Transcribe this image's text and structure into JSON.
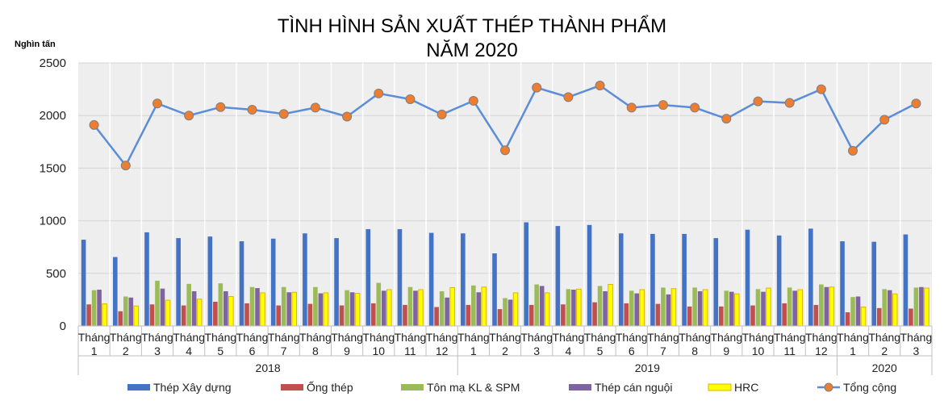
{
  "chart_data": {
    "type": "bar",
    "title": [
      "TÌNH HÌNH SẢN XUẤT THÉP THÀNH PHẨM",
      "NĂM 2020"
    ],
    "ylabel": "Nghìn tấn",
    "ylim": [
      0,
      2500
    ],
    "yticks": [
      0,
      500,
      1000,
      1500,
      2000,
      2500
    ],
    "grid": true,
    "legend_position": "bottom",
    "categories": [
      "Tháng 1",
      "Tháng 2",
      "Tháng 3",
      "Tháng 4",
      "Tháng 5",
      "Tháng 6",
      "Tháng 7",
      "Tháng 8",
      "Tháng 9",
      "Tháng 10",
      "Tháng 11",
      "Tháng 12",
      "Tháng 1",
      "Tháng 2",
      "Tháng 3",
      "Tháng 4",
      "Tháng 5",
      "Tháng 6",
      "Tháng 7",
      "Tháng 8",
      "Tháng 9",
      "Tháng 10",
      "Tháng 11",
      "Tháng 12",
      "Tháng 1",
      "Tháng 2",
      "Tháng 3"
    ],
    "category_lines": [
      [
        "Tháng",
        "1"
      ],
      [
        "Tháng",
        "2"
      ],
      [
        "Tháng",
        "3"
      ],
      [
        "Tháng",
        "4"
      ],
      [
        "Tháng",
        "5"
      ],
      [
        "Tháng",
        "6"
      ],
      [
        "Tháng",
        "7"
      ],
      [
        "Tháng",
        "8"
      ],
      [
        "Tháng",
        "9"
      ],
      [
        "Tháng",
        "10"
      ],
      [
        "Tháng",
        "11"
      ],
      [
        "Tháng",
        "12"
      ],
      [
        "Tháng",
        "1"
      ],
      [
        "Tháng",
        "2"
      ],
      [
        "Tháng",
        "3"
      ],
      [
        "Tháng",
        "4"
      ],
      [
        "Tháng",
        "5"
      ],
      [
        "Tháng",
        "6"
      ],
      [
        "Tháng",
        "7"
      ],
      [
        "Tháng",
        "8"
      ],
      [
        "Tháng",
        "9"
      ],
      [
        "Tháng",
        "10"
      ],
      [
        "Tháng",
        "11"
      ],
      [
        "Tháng",
        "12"
      ],
      [
        "Tháng",
        "1"
      ],
      [
        "Tháng",
        "2"
      ],
      [
        "Tháng",
        "3"
      ]
    ],
    "year_groups": [
      {
        "label": "2018",
        "count": 12
      },
      {
        "label": "2019",
        "count": 12
      },
      {
        "label": "2020",
        "count": 3
      }
    ],
    "series": [
      {
        "name": "Thép Xây dựng",
        "kind": "bar",
        "color": "#4472c4",
        "values": [
          820,
          655,
          890,
          835,
          850,
          805,
          830,
          880,
          835,
          920,
          920,
          885,
          880,
          690,
          985,
          950,
          960,
          880,
          875,
          875,
          835,
          915,
          860,
          925,
          805,
          800,
          870
        ]
      },
      {
        "name": "Ống thép",
        "kind": "bar",
        "color": "#c0504d",
        "values": [
          205,
          140,
          205,
          195,
          230,
          215,
          195,
          210,
          195,
          215,
          200,
          180,
          200,
          160,
          200,
          205,
          225,
          215,
          210,
          185,
          185,
          195,
          215,
          200,
          130,
          170,
          165
        ]
      },
      {
        "name": "Tôn mạ KL & SPM",
        "kind": "bar",
        "color": "#9bbb59",
        "values": [
          340,
          280,
          430,
          400,
          405,
          370,
          370,
          370,
          340,
          410,
          370,
          330,
          385,
          265,
          395,
          350,
          380,
          335,
          365,
          365,
          335,
          350,
          365,
          395,
          275,
          350,
          365
        ]
      },
      {
        "name": "Thép cán nguội",
        "kind": "bar",
        "color": "#8064a2",
        "values": [
          345,
          270,
          355,
          330,
          330,
          360,
          320,
          310,
          320,
          335,
          335,
          270,
          320,
          250,
          380,
          345,
          330,
          310,
          300,
          330,
          325,
          325,
          335,
          370,
          280,
          340,
          370
        ]
      },
      {
        "name": "HRC",
        "kind": "bar",
        "color": "#ffff00",
        "stroke": "#e0b400",
        "values": [
          210,
          190,
          245,
          255,
          280,
          315,
          320,
          315,
          310,
          345,
          345,
          365,
          370,
          315,
          315,
          350,
          395,
          345,
          355,
          345,
          305,
          360,
          345,
          370,
          180,
          305,
          360
        ]
      },
      {
        "name": "Tổng cộng",
        "kind": "line",
        "color": "#5b8ed6",
        "marker": "#ed7d31",
        "values": [
          1910,
          1525,
          2115,
          2000,
          2080,
          2055,
          2015,
          2075,
          1990,
          2210,
          2155,
          2010,
          2140,
          1670,
          2265,
          2175,
          2285,
          2075,
          2100,
          2075,
          1970,
          2135,
          2120,
          2250,
          1665,
          1960,
          2115
        ]
      }
    ]
  }
}
